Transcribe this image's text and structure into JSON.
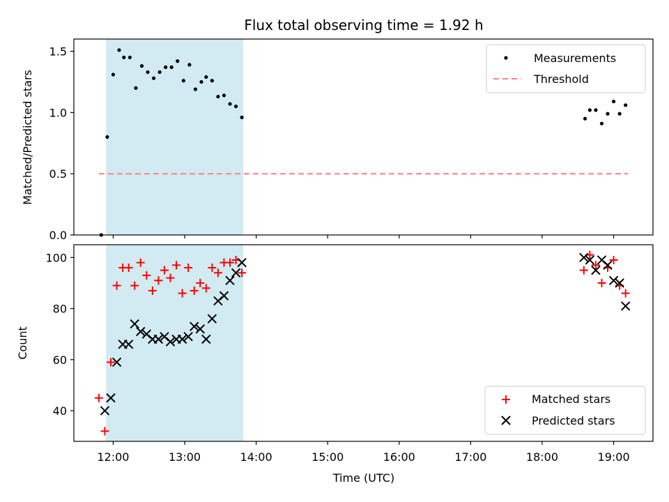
{
  "chart_data": [
    {
      "type": "scatter",
      "title": "Flux total observing time = 1.92 h",
      "xlabel": "",
      "ylabel": "Matched/Predicted stars",
      "ylim": [
        0,
        1.6
      ],
      "yticks": [
        "0.0",
        "0.5",
        "1.0",
        "1.5"
      ],
      "legend_position": "top-right",
      "legend": [
        "Measurements",
        "Threshold"
      ],
      "highlight_span_hours": [
        11.9,
        13.82
      ],
      "threshold": {
        "name": "Threshold",
        "value": 0.5,
        "x_range_hours": [
          11.8,
          19.2
        ],
        "color": "#ff8080"
      },
      "series": [
        {
          "name": "Measurements",
          "color": "#000000",
          "x": [
            "11:50",
            "11:55",
            "12:00",
            "12:05",
            "12:09",
            "12:14",
            "12:19",
            "12:24",
            "12:29",
            "12:34",
            "12:39",
            "12:44",
            "12:49",
            "12:54",
            "12:59",
            "13:04",
            "13:09",
            "13:14",
            "13:18",
            "13:23",
            "13:28",
            "13:33",
            "13:38",
            "13:43",
            "13:48",
            "18:36",
            "18:40",
            "18:45",
            "18:50",
            "18:55",
            "19:00",
            "19:05",
            "19:10"
          ],
          "y": [
            0.0,
            0.8,
            1.31,
            1.51,
            1.45,
            1.45,
            1.2,
            1.38,
            1.33,
            1.28,
            1.33,
            1.37,
            1.37,
            1.42,
            1.26,
            1.39,
            1.19,
            1.25,
            1.29,
            1.26,
            1.13,
            1.14,
            1.07,
            1.05,
            0.96,
            0.95,
            1.02,
            1.02,
            0.91,
            0.99,
            1.09,
            0.99,
            1.06
          ]
        }
      ]
    },
    {
      "type": "scatter",
      "xlabel": "Time (UTC)",
      "ylabel": "Count",
      "ylim": [
        28,
        105
      ],
      "yticks": [
        "40",
        "60",
        "80",
        "100"
      ],
      "xlim_hours": [
        11.45,
        19.55
      ],
      "xticks": [
        "12:00",
        "13:00",
        "14:00",
        "15:00",
        "16:00",
        "17:00",
        "18:00",
        "19:00"
      ],
      "legend_position": "bottom-right",
      "legend": [
        "Matched stars",
        "Predicted stars"
      ],
      "series": [
        {
          "name": "Matched stars",
          "marker": "plus",
          "color": "#ff0000",
          "x": [
            "11:48",
            "11:53",
            "11:58",
            "12:03",
            "12:08",
            "12:13",
            "12:18",
            "12:23",
            "12:28",
            "12:33",
            "12:38",
            "12:43",
            "12:48",
            "12:53",
            "12:58",
            "13:03",
            "13:08",
            "13:13",
            "13:18",
            "13:23",
            "13:28",
            "13:33",
            "13:38",
            "13:43",
            "13:48",
            "18:35",
            "18:40",
            "18:45",
            "18:50",
            "18:55",
            "19:00",
            "19:05",
            "19:10"
          ],
          "y": [
            45,
            32,
            59,
            89,
            96,
            96,
            89,
            98,
            93,
            87,
            91,
            95,
            92,
            97,
            86,
            96,
            87,
            90,
            88,
            96,
            94,
            98,
            98,
            99,
            94,
            95,
            101,
            97,
            90,
            96,
            99,
            89,
            86
          ]
        },
        {
          "name": "Predicted stars",
          "marker": "x",
          "color": "#000000",
          "x": [
            "11:53",
            "11:58",
            "12:03",
            "12:08",
            "12:13",
            "12:18",
            "12:23",
            "12:28",
            "12:33",
            "12:38",
            "12:43",
            "12:48",
            "12:53",
            "12:58",
            "13:03",
            "13:08",
            "13:13",
            "13:18",
            "13:23",
            "13:28",
            "13:33",
            "13:38",
            "13:43",
            "13:48",
            "18:35",
            "18:40",
            "18:45",
            "18:50",
            "18:55",
            "19:00",
            "19:05",
            "19:10"
          ],
          "y": [
            40,
            45,
            59,
            66,
            66,
            74,
            71,
            70,
            68,
            68,
            69,
            67,
            68,
            68,
            69,
            73,
            72,
            68,
            76,
            83,
            85,
            91,
            94,
            98,
            100,
            99,
            95,
            99,
            97,
            91,
            90,
            81
          ]
        }
      ]
    }
  ]
}
